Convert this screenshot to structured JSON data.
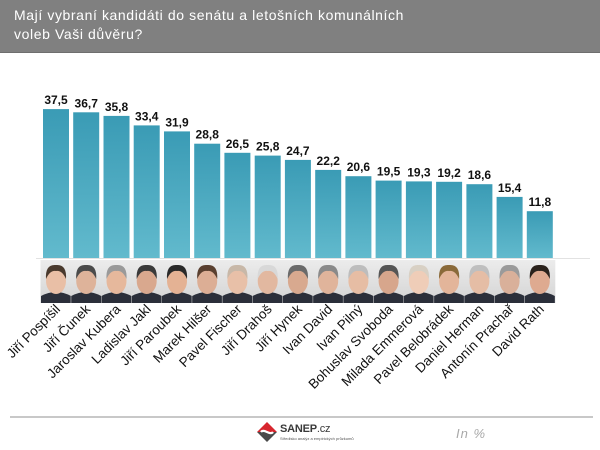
{
  "header": {
    "title": "Mají vybraní kandidáti do senátu a letošních komunálních voleb Vaši důvěru?"
  },
  "chart_data": {
    "type": "bar",
    "title": "Mají vybraní kandidáti do senátu a letošních komunálních voleb Vaši důvěru?",
    "xlabel": "",
    "ylabel": "",
    "unit_label": "In %",
    "ylim": [
      0,
      40
    ],
    "grid": false,
    "legend": "none",
    "bar_color_top": "#3a9bb5",
    "bar_color_bottom": "#62bacd",
    "categories": [
      "Jiří Pospíšil",
      "Jiří Čunek",
      "Jaroslav Kubera",
      "Ladislav Jakl",
      "Jiří Paroubek",
      "Marek Hilšer",
      "Pavel Fischer",
      "Jiří Drahoš",
      "Jiří Hynek",
      "Ivan David",
      "Ivan Pilný",
      "Bohuslav Svoboda",
      "Milada Emmerová",
      "Pavel Belobrádek",
      "Daniel Herman",
      "Antonín Prachař",
      "David Rath"
    ],
    "values": [
      37.5,
      36.7,
      35.8,
      33.4,
      31.9,
      28.8,
      26.5,
      25.8,
      24.7,
      22.2,
      20.6,
      19.5,
      19.3,
      19.2,
      18.6,
      15.4,
      11.8
    ],
    "value_labels": [
      "37,5",
      "36,7",
      "35,8",
      "33,4",
      "31,9",
      "28,8",
      "26,5",
      "25,8",
      "24,7",
      "22,2",
      "20,6",
      "19,5",
      "19,3",
      "19,2",
      "18,6",
      "15,4",
      "11,8"
    ],
    "candidate_photos": true
  },
  "footer": {
    "brand": "SANEP",
    "brand_suffix": ".cz",
    "brand_tagline": "Středisko analýz a empirických průzkumů",
    "unit": "In %"
  }
}
